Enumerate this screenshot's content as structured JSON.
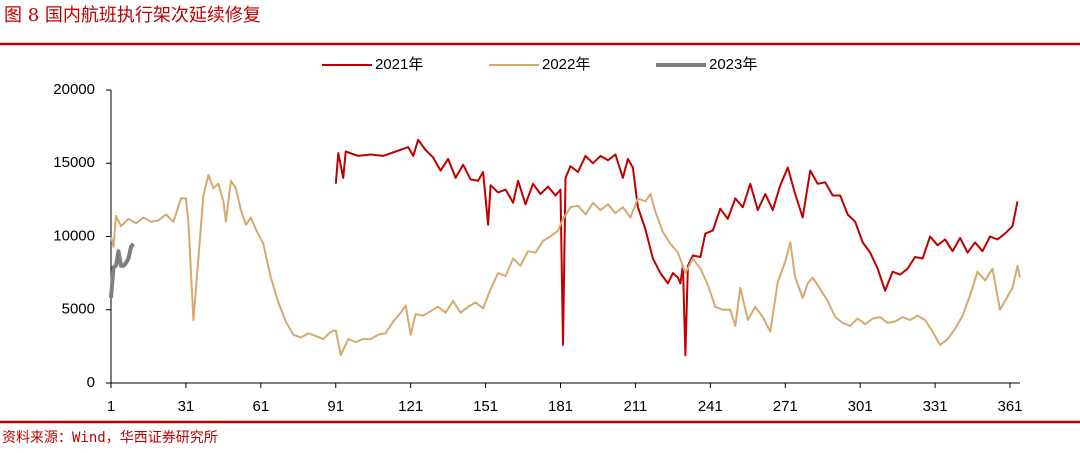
{
  "title": "图 8 国内航班执行架次延续修复",
  "source": "资料来源：Wind，华西证券研究所",
  "chart_data": {
    "type": "line",
    "xlim": [
      1,
      365
    ],
    "xticks": [
      1,
      31,
      61,
      91,
      121,
      151,
      181,
      211,
      241,
      271,
      301,
      331,
      361
    ],
    "ylim": [
      0,
      20000
    ],
    "yticks": [
      0,
      5000,
      10000,
      15000,
      20000
    ],
    "series": [
      {
        "name": "2021年",
        "color": "#c00000",
        "width": 2,
        "x": [
          91,
          92,
          94,
          95,
          100,
          105,
          110,
          115,
          120,
          122,
          124,
          127,
          130,
          133,
          136,
          139,
          142,
          145,
          148,
          150,
          152,
          153,
          156,
          159,
          162,
          164,
          167,
          170,
          173,
          176,
          179,
          181,
          182,
          183,
          185,
          188,
          191,
          194,
          197,
          200,
          203,
          206,
          208,
          210,
          212,
          215,
          218,
          221,
          224,
          226,
          228,
          229,
          230,
          231,
          232,
          234,
          237,
          239,
          242,
          245,
          248,
          251,
          254,
          257,
          260,
          263,
          266,
          269,
          272,
          275,
          278,
          281,
          284,
          287,
          290,
          293,
          296,
          299,
          302,
          305,
          308,
          311,
          314,
          317,
          320,
          323,
          326,
          329,
          332,
          335,
          338,
          341,
          344,
          347,
          350,
          353,
          356,
          359,
          362,
          364
        ],
        "values": [
          13600,
          15700,
          14000,
          15800,
          15500,
          15600,
          15500,
          15800,
          16100,
          15500,
          16600,
          15900,
          15400,
          14500,
          15300,
          14000,
          14900,
          13900,
          13800,
          14400,
          10800,
          13500,
          13000,
          13200,
          12300,
          13800,
          12200,
          13600,
          12900,
          13400,
          12800,
          13200,
          2600,
          14000,
          14800,
          14400,
          15500,
          15000,
          15500,
          15200,
          15600,
          14000,
          15300,
          14700,
          12000,
          10500,
          8500,
          7500,
          6800,
          7500,
          7200,
          6800,
          8000,
          1900,
          8000,
          8700,
          8600,
          10200,
          10400,
          11900,
          11200,
          12600,
          12000,
          13600,
          11800,
          12900,
          11800,
          13500,
          14700,
          12900,
          11300,
          14500,
          13600,
          13700,
          12800,
          12800,
          11500,
          11000,
          9600,
          8900,
          7800,
          6300,
          7600,
          7400,
          7800,
          8600,
          8500,
          10000,
          9400,
          9800,
          9000,
          9900,
          8900,
          9600,
          9000,
          10000,
          9800,
          10200,
          10700,
          12400
        ]
      },
      {
        "name": "2022年",
        "color": "#d4aa70",
        "width": 2,
        "x": [
          1,
          2,
          3,
          5,
          8,
          11,
          14,
          17,
          20,
          23,
          26,
          29,
          31,
          32,
          34,
          36,
          38,
          40,
          42,
          44,
          46,
          47,
          49,
          51,
          53,
          55,
          57,
          59,
          62,
          65,
          68,
          71,
          74,
          77,
          80,
          83,
          86,
          89,
          91,
          93,
          96,
          99,
          102,
          105,
          108,
          111,
          114,
          117,
          119,
          121,
          123,
          126,
          129,
          132,
          135,
          138,
          141,
          144,
          147,
          150,
          153,
          156,
          159,
          162,
          165,
          168,
          171,
          174,
          177,
          180,
          182,
          185,
          188,
          191,
          194,
          197,
          200,
          203,
          206,
          209,
          212,
          215,
          217,
          219,
          222,
          225,
          228,
          231,
          234,
          237,
          240,
          243,
          246,
          249,
          251,
          253,
          256,
          259,
          262,
          265,
          268,
          271,
          273,
          275,
          278,
          280,
          282,
          285,
          288,
          291,
          294,
          297,
          300,
          303,
          306,
          309,
          312,
          315,
          318,
          321,
          324,
          327,
          330,
          333,
          336,
          339,
          342,
          345,
          348,
          351,
          354,
          357,
          360,
          362,
          364,
          365
        ],
        "values": [
          10000,
          9300,
          11400,
          10700,
          11200,
          10900,
          11300,
          11000,
          11100,
          11500,
          11000,
          12600,
          12600,
          11000,
          4300,
          8500,
          12800,
          14200,
          13300,
          13600,
          12400,
          11000,
          13800,
          13300,
          11800,
          10800,
          11300,
          10500,
          9500,
          7200,
          5500,
          4200,
          3300,
          3100,
          3400,
          3200,
          3000,
          3500,
          3600,
          1900,
          3000,
          2800,
          3000,
          3000,
          3300,
          3400,
          4200,
          4800,
          5300,
          3300,
          4700,
          4600,
          4900,
          5200,
          4800,
          5600,
          4800,
          5200,
          5500,
          5100,
          6400,
          7500,
          7300,
          8500,
          8000,
          9000,
          8900,
          9700,
          10000,
          10400,
          11200,
          12000,
          12100,
          11500,
          12300,
          11800,
          12200,
          11600,
          12000,
          11300,
          12600,
          12400,
          12900,
          11700,
          10300,
          9500,
          8900,
          7500,
          8500,
          7800,
          6700,
          5200,
          5000,
          5000,
          3900,
          6500,
          4300,
          5200,
          4500,
          3500,
          6900,
          8300,
          9600,
          7200,
          5800,
          6800,
          7200,
          6400,
          5600,
          4500,
          4100,
          3900,
          4400,
          4000,
          4400,
          4500,
          4100,
          4200,
          4500,
          4300,
          4600,
          4300,
          3500,
          2600,
          3000,
          3700,
          4600,
          6000,
          7600,
          7000,
          7800,
          5000,
          5900,
          6500,
          8000,
          7200
        ]
      },
      {
        "name": "2023年",
        "color": "#7f7f7f",
        "width": 4,
        "x": [
          1,
          2,
          3,
          4,
          5,
          6,
          7,
          8,
          9,
          10
        ],
        "values": [
          5800,
          7900,
          8000,
          9000,
          8000,
          8000,
          8200,
          8500,
          9300,
          9500
        ]
      }
    ]
  }
}
